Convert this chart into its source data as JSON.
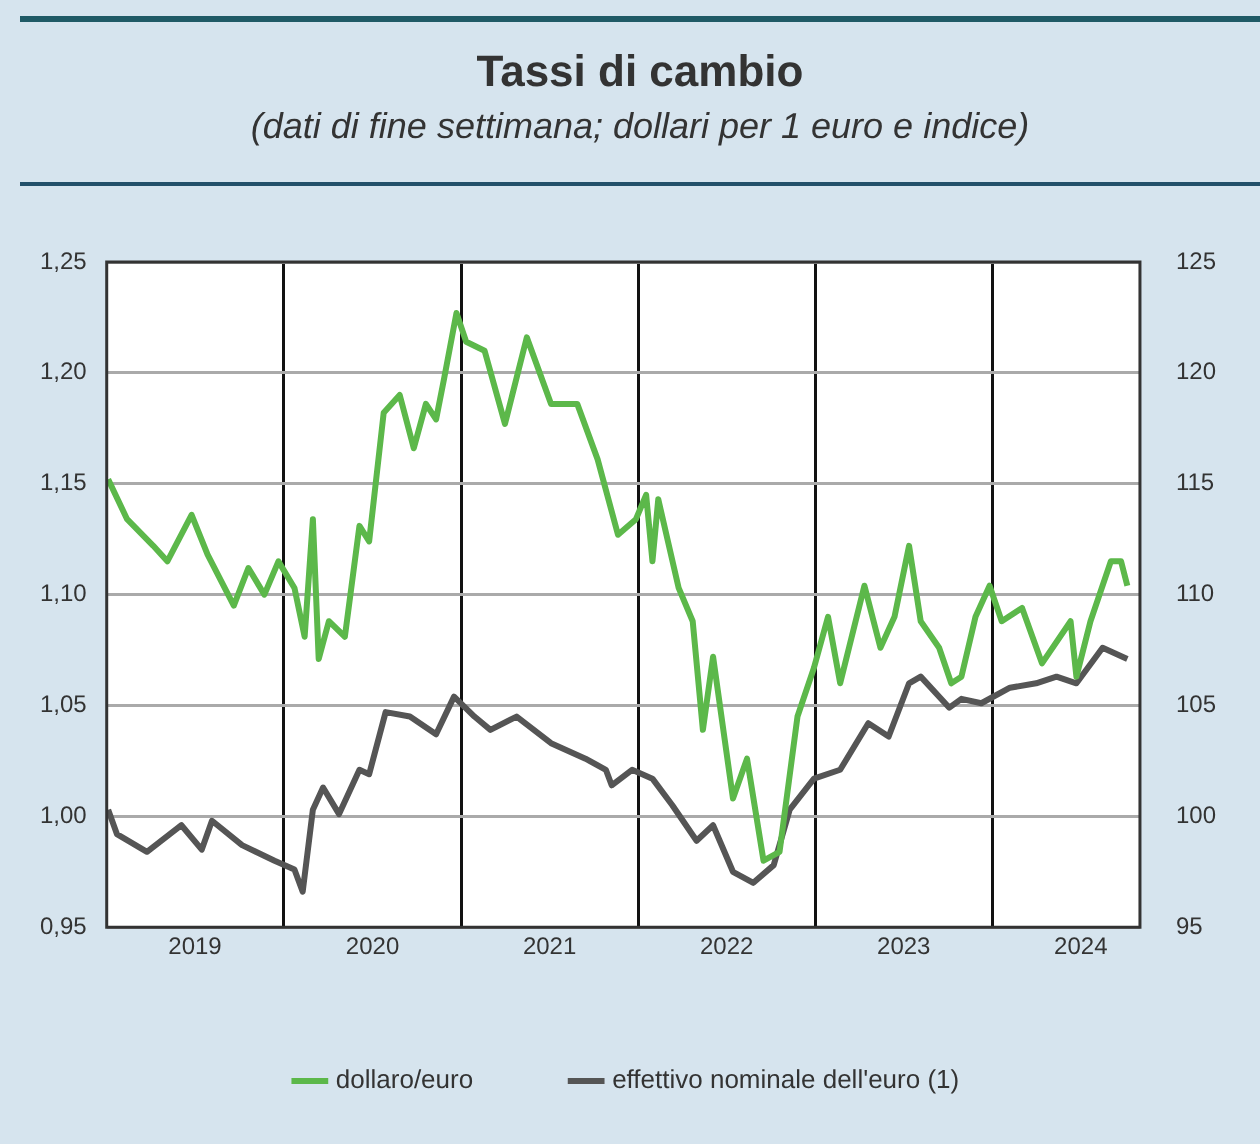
{
  "chart_data": {
    "type": "line",
    "title": "Tassi di cambio",
    "subtitle": "(dati di fine settimana; dollari per 1 euro e indice)",
    "xlim": [
      "2019-01-01",
      "2024-10-31"
    ],
    "xticks": [
      {
        "value": "2019-07-02",
        "label": "2019"
      },
      {
        "value": "2020-01-01",
        "label": null
      },
      {
        "value": "2020-07-02",
        "label": "2020"
      },
      {
        "value": "2021-01-01",
        "label": null
      },
      {
        "value": "2021-07-02",
        "label": "2021"
      },
      {
        "value": "2022-01-01",
        "label": null
      },
      {
        "value": "2022-07-02",
        "label": "2022"
      },
      {
        "value": "2023-01-01",
        "label": null
      },
      {
        "value": "2023-07-02",
        "label": "2023"
      },
      {
        "value": "2024-01-01",
        "label": null
      },
      {
        "value": "2024-07-01",
        "label": "2024"
      }
    ],
    "ylim": [
      0.95,
      1.25
    ],
    "yticks": [
      {
        "value": 0.95,
        "label": "0,95"
      },
      {
        "value": 1.0,
        "label": "1,00"
      },
      {
        "value": 1.05,
        "label": "1,05"
      },
      {
        "value": 1.1,
        "label": "1,10"
      },
      {
        "value": 1.15,
        "label": "1,15"
      },
      {
        "value": 1.2,
        "label": "1,20"
      },
      {
        "value": 1.25,
        "label": "1,25"
      }
    ],
    "y2lim": [
      95,
      125
    ],
    "y2ticks": [
      95,
      100,
      105,
      110,
      115,
      120,
      125
    ],
    "grid": true,
    "legend": "bottom",
    "marker": "none",
    "line_style": "solid",
    "series": [
      {
        "name": "dollaro/euro",
        "color": "#5cb84a",
        "x": [
          "2019-01-04",
          "2019-02-12",
          "2019-04-07",
          "2019-05-06",
          "2019-06-25",
          "2019-07-28",
          "2019-09-20",
          "2019-10-20",
          "2019-11-22",
          "2019-12-21",
          "2020-01-23",
          "2020-02-13",
          "2020-03-01",
          "2020-03-13",
          "2020-04-03",
          "2020-05-06",
          "2020-06-05",
          "2020-06-25",
          "2020-07-25",
          "2020-08-27",
          "2020-09-25",
          "2020-10-20",
          "2020-11-10",
          "2020-11-27",
          "2020-12-22",
          "2021-01-11",
          "2021-02-18",
          "2021-04-01",
          "2021-05-16",
          "2021-07-05",
          "2021-08-28",
          "2021-10-09",
          "2021-11-20",
          "2021-12-27",
          "2022-01-17",
          "2022-01-30",
          "2022-02-11",
          "2022-03-25",
          "2022-04-23",
          "2022-05-14",
          "2022-06-04",
          "2022-07-15",
          "2022-08-13",
          "2022-09-16",
          "2022-10-19",
          "2022-11-25",
          "2022-12-29",
          "2023-01-27",
          "2023-02-21",
          "2023-04-12",
          "2023-05-15",
          "2023-06-13",
          "2023-07-13",
          "2023-08-06",
          "2023-09-13",
          "2023-10-08",
          "2023-10-29",
          "2023-11-27",
          "2023-12-26",
          "2024-01-20",
          "2024-03-02",
          "2024-04-12",
          "2024-06-10",
          "2024-06-22",
          "2024-07-21",
          "2024-09-01",
          "2024-09-22",
          "2024-10-05"
        ],
        "values": [
          1.152,
          1.134,
          1.122,
          1.115,
          1.136,
          1.118,
          1.095,
          1.112,
          1.1,
          1.115,
          1.103,
          1.081,
          1.134,
          1.071,
          1.088,
          1.081,
          1.131,
          1.124,
          1.182,
          1.19,
          1.166,
          1.186,
          1.179,
          1.198,
          1.227,
          1.214,
          1.21,
          1.177,
          1.216,
          1.186,
          1.186,
          1.161,
          1.127,
          1.134,
          1.145,
          1.115,
          1.143,
          1.103,
          1.088,
          1.039,
          1.072,
          1.008,
          1.026,
          0.98,
          0.984,
          1.045,
          1.067,
          1.09,
          1.06,
          1.104,
          1.076,
          1.09,
          1.122,
          1.088,
          1.076,
          1.06,
          1.063,
          1.09,
          1.104,
          1.088,
          1.094,
          1.069,
          1.088,
          1.063,
          1.088,
          1.115,
          1.115,
          1.104
        ]
      },
      {
        "name": "effettivo nominale dell'euro (1)",
        "color": "#555555",
        "axis": "y2",
        "x": [
          "2019-01-04",
          "2019-01-22",
          "2019-03-25",
          "2019-06-04",
          "2019-07-16",
          "2019-08-06",
          "2019-10-07",
          "2019-12-13",
          "2020-01-23",
          "2020-02-09",
          "2020-03-01",
          "2020-03-22",
          "2020-04-24",
          "2020-06-05",
          "2020-06-25",
          "2020-07-29",
          "2020-09-17",
          "2020-11-10",
          "2020-12-17",
          "2021-01-28",
          "2021-03-02",
          "2021-04-25",
          "2021-07-05",
          "2021-09-14",
          "2021-10-26",
          "2021-11-07",
          "2021-12-19",
          "2022-01-30",
          "2022-03-12",
          "2022-05-01",
          "2022-06-04",
          "2022-07-15",
          "2022-08-26",
          "2022-10-07",
          "2022-11-09",
          "2022-12-29",
          "2023-02-21",
          "2023-04-20",
          "2023-06-01",
          "2023-07-13",
          "2023-08-06",
          "2023-10-04",
          "2023-10-29",
          "2023-12-09",
          "2024-02-06",
          "2024-03-31",
          "2024-05-12",
          "2024-06-22",
          "2024-08-15",
          "2024-10-05"
        ],
        "values": [
          100.3,
          99.2,
          98.4,
          99.6,
          98.5,
          99.8,
          98.7,
          98.0,
          97.6,
          96.6,
          100.3,
          101.3,
          100.1,
          102.1,
          101.9,
          104.7,
          104.5,
          103.7,
          105.4,
          104.5,
          103.9,
          104.5,
          103.3,
          102.6,
          102.1,
          101.4,
          102.1,
          101.7,
          100.5,
          98.9,
          99.6,
          97.5,
          97.0,
          97.8,
          100.3,
          101.7,
          102.1,
          104.2,
          103.6,
          106.0,
          106.3,
          104.9,
          105.3,
          105.1,
          105.8,
          106.0,
          106.3,
          106.0,
          107.6,
          107.1
        ]
      }
    ]
  }
}
